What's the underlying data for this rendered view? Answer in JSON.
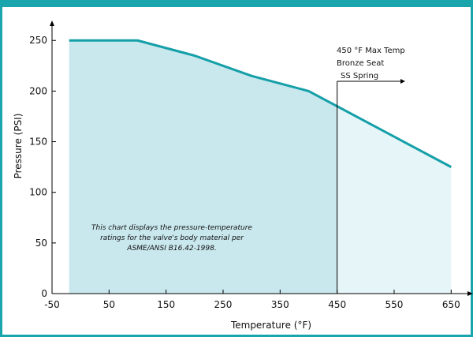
{
  "chart_data": {
    "type": "area",
    "title": "",
    "xlabel": "Temperature (°F)",
    "ylabel": "Pressure (PSI)",
    "x_ticks": [
      -50,
      50,
      150,
      250,
      350,
      450,
      550,
      650
    ],
    "y_ticks": [
      0,
      50,
      100,
      150,
      200,
      250
    ],
    "xlim": [
      -50,
      680
    ],
    "ylim": [
      0,
      265
    ],
    "grid": false,
    "series": [
      {
        "x": [
          -20,
          100,
          200,
          300,
          400,
          650
        ],
        "y": [
          250,
          250,
          235,
          215,
          200,
          125
        ]
      }
    ],
    "colors": {
      "line": "#159fa8",
      "fill_dark": "#c9e8ee",
      "fill_light": "#e6f5f7",
      "frame": "#1aa5ad"
    },
    "limit_line": {
      "x": 450,
      "labels": [
        "450 °F Max Temp",
        "Bronze Seat",
        "SS Spring"
      ]
    },
    "note": {
      "lines": [
        "This chart displays the pressure-temperature",
        "ratings  for the valve's body material per",
        "ASME/ANSI B16.42-1998."
      ]
    }
  }
}
